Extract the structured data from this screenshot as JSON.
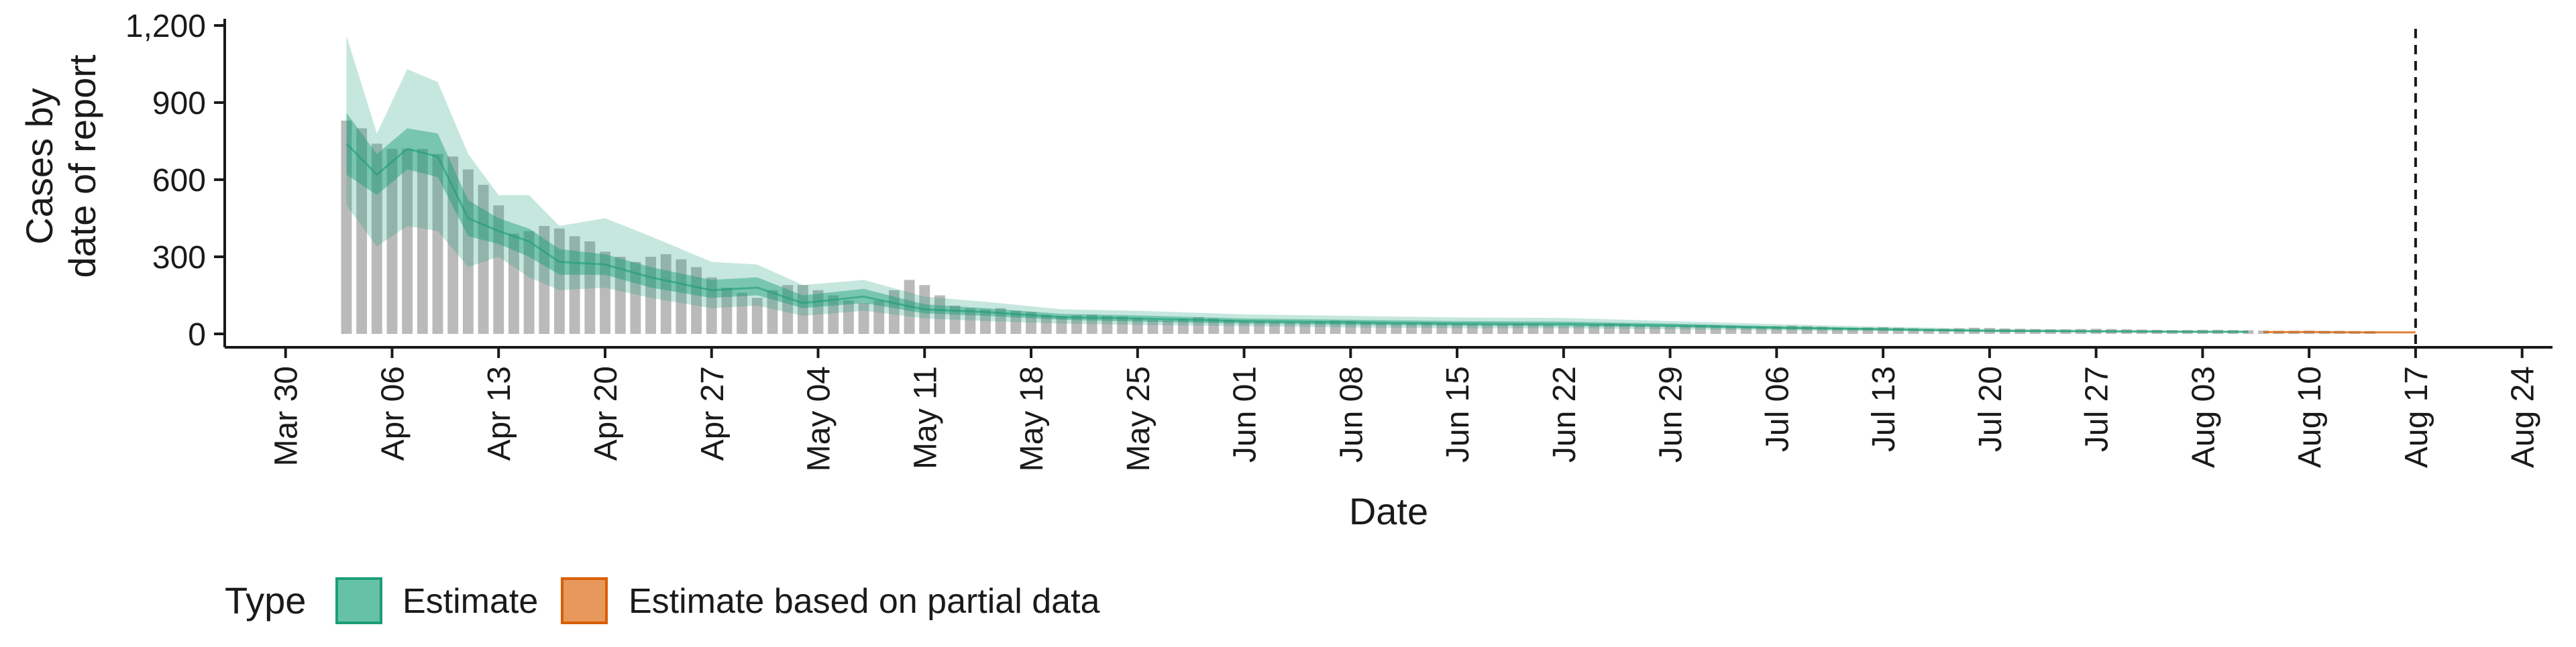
{
  "chart_data": {
    "type": "area",
    "xlabel": "Date",
    "ylabel_lines": [
      "Cases by",
      "date of report"
    ],
    "ylim": [
      0,
      1200
    ],
    "y_ticks": [
      0,
      300,
      600,
      900,
      1200
    ],
    "y_tick_labels": [
      "0",
      "300",
      "600",
      "900",
      "1,200"
    ],
    "x_ticks": [
      "2020-03-30",
      "2020-04-06",
      "2020-04-13",
      "2020-04-20",
      "2020-04-27",
      "2020-05-04",
      "2020-05-11",
      "2020-05-18",
      "2020-05-25",
      "2020-06-01",
      "2020-06-08",
      "2020-06-15",
      "2020-06-22",
      "2020-06-29",
      "2020-07-06",
      "2020-07-13",
      "2020-07-20",
      "2020-07-27",
      "2020-08-03",
      "2020-08-10",
      "2020-08-17",
      "2020-08-24"
    ],
    "x_tick_labels": [
      "Mar 30",
      "Apr 06",
      "Apr 13",
      "Apr 20",
      "Apr 27",
      "May 04",
      "May 11",
      "May 18",
      "May 25",
      "Jun 01",
      "Jun 08",
      "Jun 15",
      "Jun 22",
      "Jun 29",
      "Jul 06",
      "Jul 13",
      "Jul 20",
      "Jul 27",
      "Aug 03",
      "Aug 10",
      "Aug 17",
      "Aug 24"
    ],
    "xlim": [
      "2020-03-26",
      "2020-08-26"
    ],
    "grid": false,
    "reference_line": "2020-08-17",
    "observed_cases": {
      "start": "2020-04-03",
      "values": [
        830,
        800,
        740,
        720,
        720,
        720,
        700,
        690,
        640,
        580,
        500,
        390,
        400,
        420,
        410,
        380,
        360,
        320,
        300,
        280,
        300,
        310,
        290,
        260,
        220,
        180,
        160,
        140,
        170,
        190,
        190,
        170,
        150,
        130,
        120,
        130,
        170,
        210,
        190,
        150,
        110,
        100,
        95,
        100,
        90,
        85,
        75,
        70,
        72,
        75,
        70,
        68,
        62,
        55,
        52,
        60,
        65,
        60,
        55,
        50,
        50,
        48,
        46,
        45,
        48,
        52,
        50,
        46,
        42,
        40,
        42,
        44,
        42,
        40,
        38,
        36,
        38,
        40,
        38,
        35,
        32,
        33,
        36,
        40,
        38,
        34,
        30,
        30,
        32,
        34,
        33,
        30,
        28,
        28,
        30,
        32,
        30,
        28,
        25,
        24,
        25,
        26,
        24,
        22,
        20,
        20,
        22,
        24,
        23,
        21,
        20,
        19,
        18,
        18,
        19,
        20,
        19,
        18,
        17,
        16,
        15,
        15,
        16,
        16,
        15,
        14,
        13,
        12,
        12,
        13,
        12,
        12,
        11,
        11
      ]
    },
    "series": [
      {
        "name": "Estimate",
        "color": "#1B9E77",
        "dates": [
          "2020-04-03",
          "2020-04-05",
          "2020-04-07",
          "2020-04-09",
          "2020-04-11",
          "2020-04-13",
          "2020-04-15",
          "2020-04-17",
          "2020-04-20",
          "2020-04-23",
          "2020-04-27",
          "2020-04-30",
          "2020-05-03",
          "2020-05-07",
          "2020-05-11",
          "2020-05-15",
          "2020-05-20",
          "2020-05-25",
          "2020-06-01",
          "2020-06-08",
          "2020-06-15",
          "2020-06-22",
          "2020-06-29",
          "2020-07-06",
          "2020-07-13",
          "2020-07-20",
          "2020-07-27",
          "2020-08-03",
          "2020-08-06"
        ],
        "median": [
          740,
          620,
          720,
          690,
          450,
          400,
          360,
          280,
          270,
          220,
          170,
          180,
          120,
          145,
          95,
          85,
          65,
          60,
          50,
          45,
          40,
          38,
          33,
          24,
          18,
          12,
          10,
          8,
          8
        ],
        "lower_50": [
          620,
          540,
          640,
          610,
          380,
          350,
          300,
          230,
          230,
          180,
          140,
          150,
          100,
          120,
          80,
          70,
          55,
          48,
          40,
          35,
          32,
          30,
          26,
          19,
          14,
          9,
          7,
          6,
          6
        ],
        "upper_50": [
          860,
          700,
          800,
          780,
          520,
          450,
          410,
          330,
          310,
          260,
          210,
          220,
          150,
          175,
          115,
          100,
          78,
          72,
          60,
          55,
          50,
          48,
          40,
          30,
          22,
          15,
          12,
          10,
          10
        ],
        "lower_90": [
          500,
          340,
          420,
          400,
          260,
          300,
          220,
          170,
          180,
          140,
          100,
          110,
          70,
          90,
          60,
          50,
          40,
          35,
          30,
          25,
          22,
          22,
          18,
          13,
          10,
          6,
          5,
          4,
          4
        ],
        "upper_90": [
          1160,
          780,
          1030,
          980,
          700,
          540,
          540,
          420,
          450,
          380,
          280,
          270,
          190,
          210,
          145,
          125,
          96,
          90,
          76,
          70,
          64,
          62,
          50,
          38,
          28,
          20,
          16,
          13,
          13
        ]
      },
      {
        "name": "Estimate based on partial data",
        "color": "#D95F02",
        "dates": [
          "2020-08-07",
          "2020-08-10",
          "2020-08-13",
          "2020-08-17"
        ],
        "median": [
          7,
          7,
          6,
          6
        ],
        "lower_50": [
          5,
          5,
          4,
          4
        ],
        "upper_50": [
          9,
          9,
          8,
          8
        ],
        "lower_90": [
          3,
          3,
          3,
          3
        ],
        "upper_90": [
          12,
          12,
          11,
          10
        ]
      }
    ],
    "legend": {
      "title": "Type",
      "position": "bottom-left",
      "entries": [
        {
          "label": "Estimate",
          "fill": "#66C2A5",
          "stroke": "#1B9E77"
        },
        {
          "label": "Estimate based on partial data",
          "fill": "#E8985A",
          "stroke": "#D95F02"
        }
      ]
    }
  }
}
